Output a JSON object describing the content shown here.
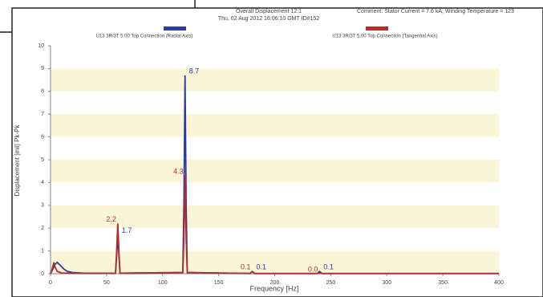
{
  "chart_data": {
    "type": "line",
    "title": "Overall Displacement 12.1",
    "subtitle": "Thu, 02 Aug 2012 16:06:10 GMT  ID#152",
    "comment": "Comment: Stator Current = 7.6 kA; Winding Temperature = 123",
    "x_label": "Frequency [Hz]",
    "y_label": "Displacement [mil] Pk-Pk",
    "xlim": [
      0,
      400
    ],
    "xticks": [
      0,
      50,
      100,
      150,
      200,
      250,
      300,
      350,
      400
    ],
    "ylim": [
      0,
      10
    ],
    "yticks": [
      0,
      1,
      2,
      3,
      4,
      5,
      6,
      7,
      8,
      9,
      10
    ],
    "grid": true,
    "band_color": "#faf5d7",
    "series": [
      {
        "name": "U13 3R/3T 5.00 Top Connection (Radial Axis)",
        "color": "#2b3aa8",
        "x": [
          0,
          2,
          4,
          6,
          8,
          10,
          12,
          15,
          20,
          30,
          58,
          59,
          60,
          61,
          62,
          118,
          119,
          120,
          121,
          122,
          178,
          180,
          182,
          238,
          240,
          242,
          300,
          400
        ],
        "values": [
          0,
          0.2,
          0.4,
          0.5,
          0.4,
          0.3,
          0.2,
          0.1,
          0.05,
          0.02,
          0.02,
          0.8,
          1.7,
          0.8,
          0.02,
          0.05,
          3,
          8.7,
          3,
          0.05,
          0.01,
          0.1,
          0.01,
          0.01,
          0.1,
          0.01,
          0.01,
          0.01
        ],
        "peaks": {
          "x": [
            60,
            120,
            180,
            240
          ],
          "values": [
            1.7,
            8.7,
            0.1,
            0.1
          ],
          "value_labels": [
            "1.7",
            "8.7",
            "0.1",
            "0.1"
          ]
        }
      },
      {
        "name": "U13 3R/3T 5.00 Top Connection (Tangential Axis)",
        "color": "#b52a2a",
        "x": [
          0,
          2,
          3,
          4,
          6,
          10,
          20,
          58,
          59,
          60,
          61,
          62,
          118,
          119,
          120,
          121,
          122,
          178,
          180,
          182,
          238,
          240,
          242,
          400
        ],
        "values": [
          0,
          0.3,
          0.5,
          0.3,
          0.1,
          0.03,
          0.02,
          0.02,
          1,
          2.2,
          1,
          0.02,
          0.05,
          1.5,
          4.3,
          1.5,
          0.05,
          0.01,
          0.1,
          0.01,
          0.01,
          0.04,
          0.01,
          0.01
        ],
        "peaks": {
          "x": [
            60,
            120,
            180,
            240
          ],
          "values": [
            2.2,
            4.3,
            0.1,
            0.0
          ],
          "value_labels": [
            "2.2",
            "4.3",
            "0.1",
            "0.0"
          ]
        }
      }
    ]
  }
}
